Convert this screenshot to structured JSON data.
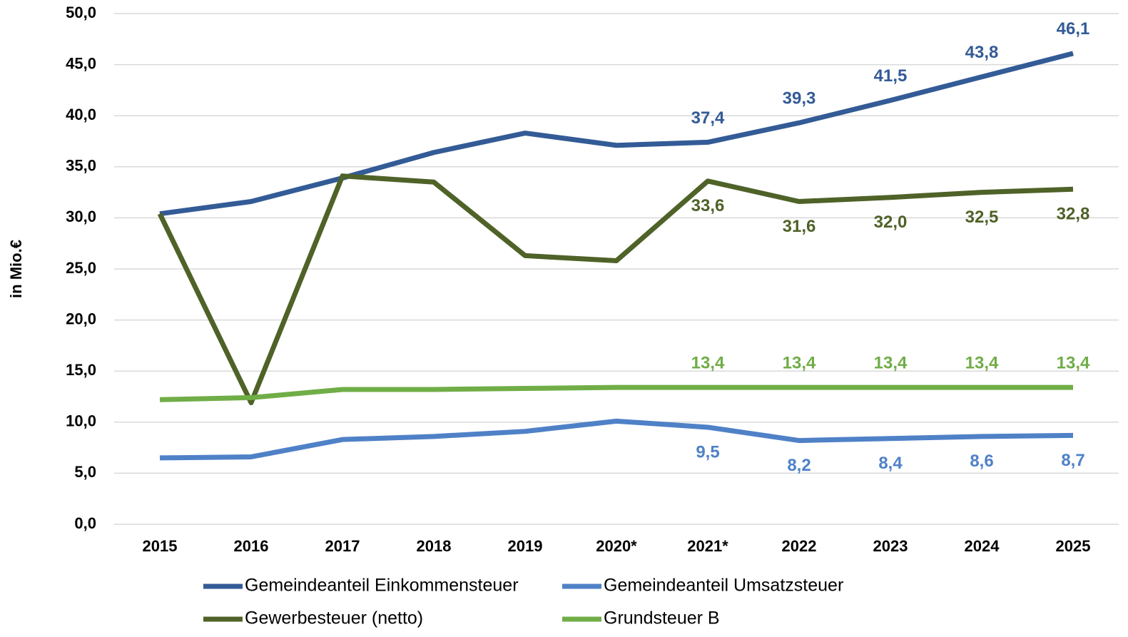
{
  "chart_data": {
    "type": "line",
    "y_label": "in Mio.€",
    "categories": [
      "2015",
      "2016",
      "2017",
      "2018",
      "2019",
      "2020*",
      "2021*",
      "2022",
      "2023",
      "2024",
      "2025"
    ],
    "series": [
      {
        "name": "Gemeindeanteil Einkommensteuer",
        "color": "#335b96",
        "label_pos": "above",
        "values": [
          30.4,
          31.6,
          33.9,
          36.4,
          38.3,
          37.1,
          37.4,
          39.3,
          41.5,
          43.8,
          46.1
        ],
        "value_labels": [
          null,
          null,
          null,
          null,
          null,
          null,
          "37,4",
          "39,3",
          "41,5",
          "43,8",
          "46,1"
        ]
      },
      {
        "name": "Gemeindeanteil Umsatzsteuer",
        "color": "#4f81c7",
        "label_pos": "below",
        "values": [
          6.5,
          6.6,
          8.3,
          8.6,
          9.1,
          10.1,
          9.5,
          8.2,
          8.4,
          8.6,
          8.7
        ],
        "value_labels": [
          null,
          null,
          null,
          null,
          null,
          null,
          "9,5",
          "8,2",
          "8,4",
          "8,6",
          "8,7"
        ]
      },
      {
        "name": "Gewerbesteuer (netto)",
        "color": "#4f6228",
        "label_pos": "below",
        "values": [
          30.4,
          11.9,
          34.1,
          33.5,
          26.3,
          25.8,
          33.6,
          31.6,
          32.0,
          32.5,
          32.8
        ],
        "value_labels": [
          null,
          null,
          null,
          null,
          null,
          null,
          "33,6",
          "31,6",
          "32,0",
          "32,5",
          "32,8"
        ]
      },
      {
        "name": "Grundsteuer B",
        "color": "#70ad47",
        "label_pos": "above",
        "values": [
          12.2,
          12.4,
          13.2,
          13.2,
          13.3,
          13.4,
          13.4,
          13.4,
          13.4,
          13.4,
          13.4
        ],
        "value_labels": [
          null,
          null,
          null,
          null,
          null,
          null,
          "13,4",
          "13,4",
          "13,4",
          "13,4",
          "13,4"
        ]
      }
    ],
    "ylim": [
      0,
      50
    ],
    "yticks": [
      {
        "value": 0,
        "label": "0,0"
      },
      {
        "value": 5,
        "label": "5,0"
      },
      {
        "value": 10,
        "label": "10,0"
      },
      {
        "value": 15,
        "label": "15,0"
      },
      {
        "value": 20,
        "label": "20,0"
      },
      {
        "value": 25,
        "label": "25,0"
      },
      {
        "value": 30,
        "label": "30,0"
      },
      {
        "value": 35,
        "label": "35,0"
      },
      {
        "value": 40,
        "label": "40,0"
      },
      {
        "value": 45,
        "label": "45,0"
      },
      {
        "value": 50,
        "label": "50,0"
      }
    ],
    "grid": true,
    "legend": "bottom"
  }
}
